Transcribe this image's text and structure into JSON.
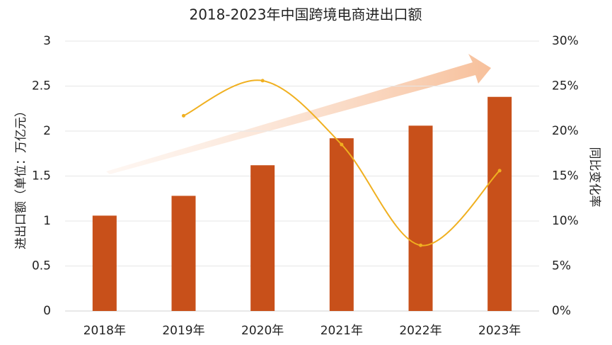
{
  "chart_data": {
    "type": "bar_line",
    "title": "2018-2023年中国跨境电商进出口额",
    "categories": [
      "2018年",
      "2019年",
      "2020年",
      "2021年",
      "2022年",
      "2023年"
    ],
    "y_label": "进出口额（单位：万亿元）",
    "y2_label": "同比变化率",
    "series": [
      {
        "name": "进出口额",
        "type": "bar",
        "color": "#c8501a",
        "values": [
          1.06,
          1.28,
          1.62,
          1.92,
          2.06,
          2.38
        ]
      },
      {
        "name": "同比变化率",
        "type": "line",
        "axis": "y2",
        "color": "#f0b020",
        "values": [
          null,
          21.7,
          25.6,
          18.5,
          7.3,
          15.6
        ]
      }
    ],
    "ylim": [
      0,
      3
    ],
    "yticks": [
      0,
      0.5,
      1,
      1.5,
      2,
      2.5,
      3
    ],
    "y2lim": [
      0,
      30
    ],
    "y2ticks": [
      {
        "value": 0,
        "label": "0%"
      },
      {
        "value": 5,
        "label": "5%"
      },
      {
        "value": 10,
        "label": "10%"
      },
      {
        "value": 15,
        "label": "15%"
      },
      {
        "value": 20,
        "label": "20%"
      },
      {
        "value": 25,
        "label": "25%"
      },
      {
        "value": 30,
        "label": "30%"
      }
    ],
    "grid": true
  }
}
